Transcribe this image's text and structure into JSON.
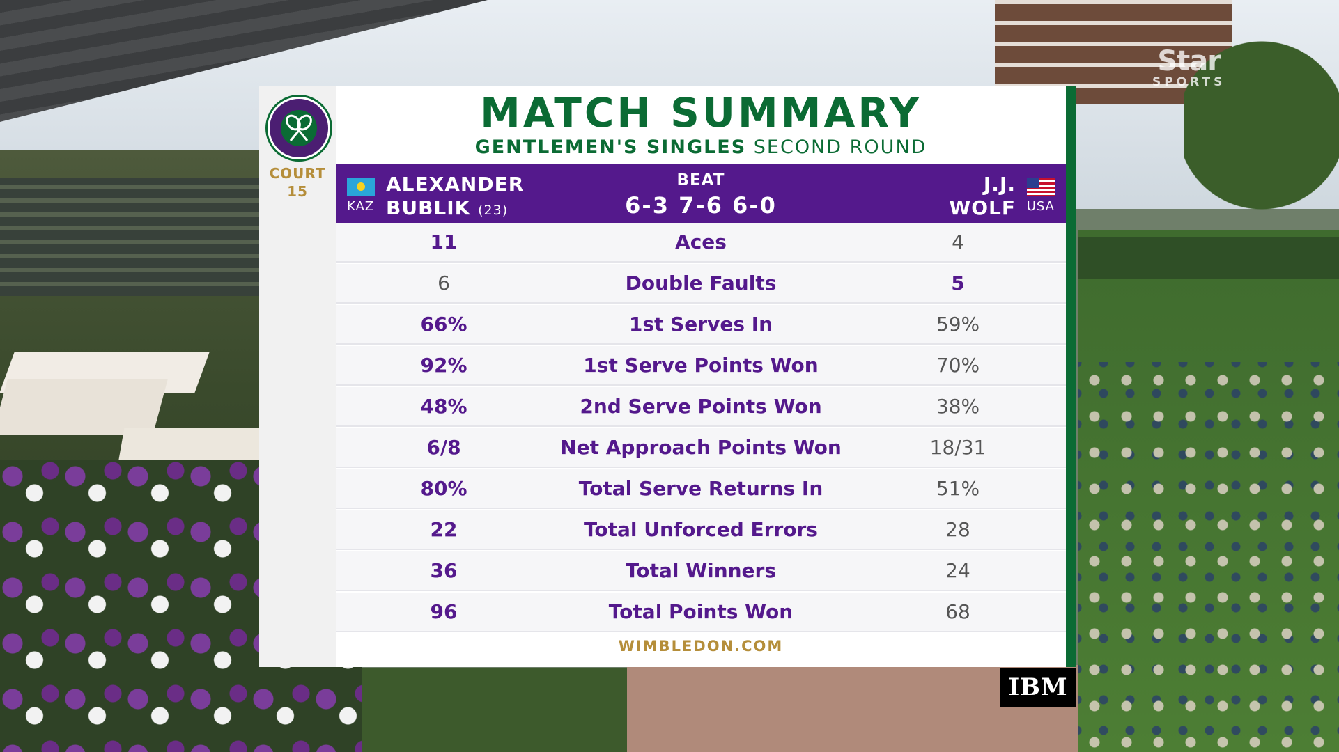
{
  "broadcaster": {
    "line1": "Star",
    "line2": "SPORTS"
  },
  "court": {
    "label": "COURT",
    "number": "15"
  },
  "title": "MATCH SUMMARY",
  "subtitle": {
    "event": "GENTLEMEN'S SINGLES",
    "round": "SECOND ROUND"
  },
  "match": {
    "player1": {
      "first": "ALEXANDER",
      "last": "BUBLIK",
      "seed": "(23)",
      "country": "KAZ",
      "flag_icon": "kazakhstan-flag-icon"
    },
    "result_word": "BEAT",
    "score": "6-3 7-6 6-0",
    "player2": {
      "first": "J.J.",
      "last": "WOLF",
      "country": "USA",
      "flag_icon": "usa-flag-icon"
    }
  },
  "stats": [
    {
      "label": "Aces",
      "p1": "11",
      "p2": "4",
      "winner": "p1"
    },
    {
      "label": "Double Faults",
      "p1": "6",
      "p2": "5",
      "winner": "p2"
    },
    {
      "label": "1st Serves In",
      "p1": "66%",
      "p2": "59%",
      "winner": "p1"
    },
    {
      "label": "1st Serve Points Won",
      "p1": "92%",
      "p2": "70%",
      "winner": "p1"
    },
    {
      "label": "2nd Serve Points Won",
      "p1": "48%",
      "p2": "38%",
      "winner": "p1"
    },
    {
      "label": "Net Approach Points Won",
      "p1": "6/8",
      "p2": "18/31",
      "winner": "p1"
    },
    {
      "label": "Total Serve Returns In",
      "p1": "80%",
      "p2": "51%",
      "winner": "p1"
    },
    {
      "label": "Total Unforced Errors",
      "p1": "22",
      "p2": "28",
      "winner": "p1"
    },
    {
      "label": "Total Winners",
      "p1": "36",
      "p2": "24",
      "winner": "p1"
    },
    {
      "label": "Total Points Won",
      "p1": "96",
      "p2": "68",
      "winner": "p1"
    }
  ],
  "footer": "WIMBLEDON.COM",
  "sponsor": "IBM",
  "colors": {
    "purple": "#54198c",
    "green": "#0b6b34",
    "gold": "#b58e3a"
  }
}
